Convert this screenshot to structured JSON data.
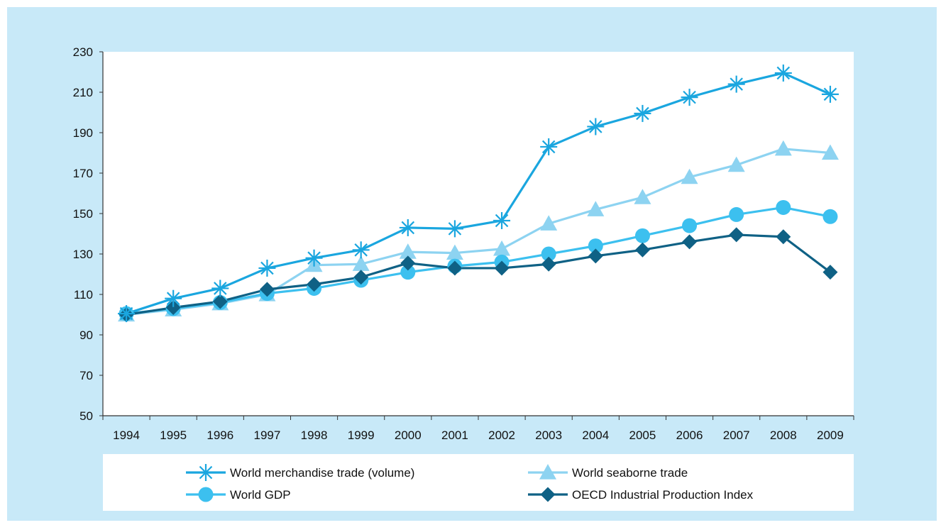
{
  "chart_data": {
    "type": "line",
    "title": "",
    "xlabel": "",
    "ylabel": "",
    "ylim": [
      50,
      230
    ],
    "yticks": [
      "50",
      "70",
      "90",
      "110",
      "130",
      "150",
      "170",
      "190",
      "210",
      "230"
    ],
    "categories": [
      "1994",
      "1995",
      "1996",
      "1997",
      "1998",
      "1999",
      "2000",
      "2001",
      "2002",
      "2003",
      "2004",
      "2005",
      "2006",
      "2007",
      "2008",
      "2009"
    ],
    "grid": false,
    "legend_position": "bottom",
    "series": [
      {
        "name": "World merchandise trade (volume)",
        "marker": "asterisk",
        "color": "#1aa6df",
        "values": [
          100.5,
          108,
          113,
          123,
          128,
          132,
          143,
          142.5,
          146.5,
          183,
          193,
          199.5,
          207.5,
          214,
          219.5,
          209
        ]
      },
      {
        "name": "World seaborne trade",
        "marker": "triangle",
        "color": "#8dd3f1",
        "values": [
          100,
          102.5,
          105.5,
          110,
          124.5,
          125,
          131,
          130.5,
          132.5,
          145,
          152,
          158,
          168,
          174,
          182,
          180
        ]
      },
      {
        "name": "World GDP",
        "marker": "circle",
        "color": "#3cc0ef",
        "values": [
          100.5,
          103,
          106,
          110.5,
          113,
          117,
          121,
          124,
          126,
          130,
          134,
          139,
          144,
          149.5,
          153,
          148.5
        ]
      },
      {
        "name": "OECD Industrial Production Index",
        "marker": "diamond",
        "color": "#0f6185",
        "values": [
          100,
          103.5,
          106.5,
          112.5,
          115,
          118.5,
          125.5,
          123,
          123,
          125,
          129,
          132,
          136,
          139.5,
          138.5,
          121
        ]
      }
    ]
  }
}
